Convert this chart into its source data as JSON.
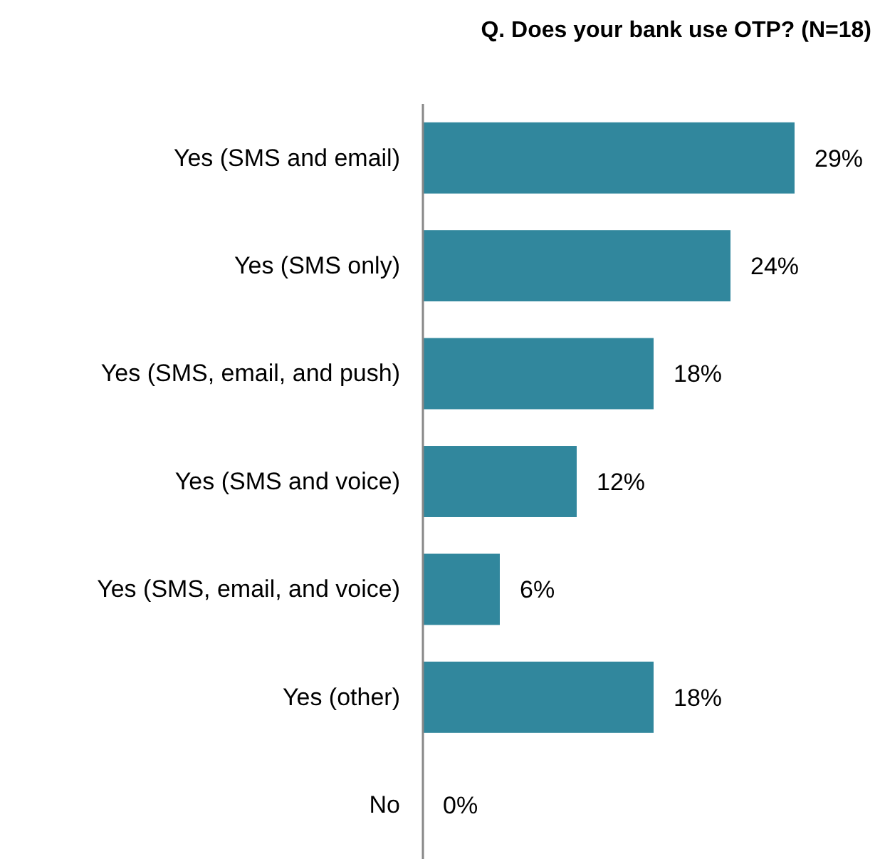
{
  "chart_data": {
    "type": "bar",
    "orientation": "horizontal",
    "title": "Q. Does your bank use OTP? (N=18)",
    "categories": [
      "Yes (SMS and email)",
      "Yes (SMS only)",
      "Yes (SMS, email, and push)",
      "Yes (SMS and voice)",
      "Yes (SMS, email, and voice)",
      "Yes (other)",
      "No"
    ],
    "values": [
      29,
      24,
      18,
      12,
      6,
      18,
      0
    ],
    "value_labels": [
      "29%",
      "24%",
      "18%",
      "12%",
      "6%",
      "18%",
      "0%"
    ],
    "color": "#31879d"
  }
}
